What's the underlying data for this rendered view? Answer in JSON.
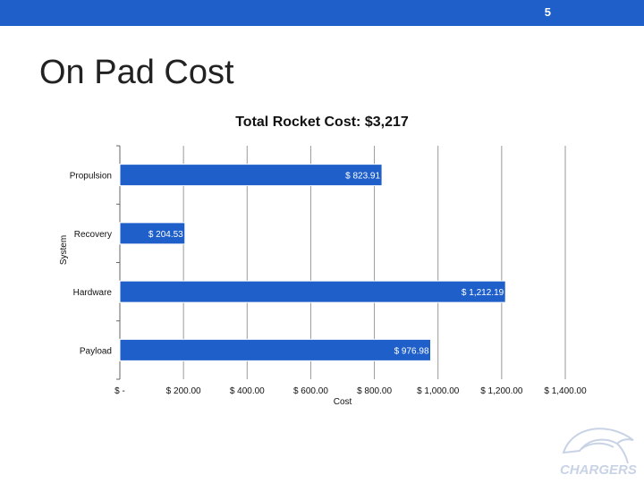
{
  "slide": {
    "number": "5",
    "title": "On Pad Cost",
    "header_color": "#1f5fc9"
  },
  "logo": {
    "text": "CHARGERS",
    "icon": "horse-head-icon"
  },
  "chart_data": {
    "type": "bar",
    "orientation": "horizontal",
    "title": "Total Rocket Cost: $3,217",
    "xlabel": "Cost",
    "ylabel": "System",
    "categories": [
      "Propulsion",
      "Recovery",
      "Hardware",
      "Payload"
    ],
    "values": [
      823.91,
      204.53,
      1212.19,
      976.98
    ],
    "value_labels": [
      "$ 823.91",
      "$ 204.53",
      "$ 1,212.19",
      "$ 976.98"
    ],
    "xlim": [
      0,
      1400
    ],
    "xticks": [
      0,
      200,
      400,
      600,
      800,
      1000,
      1200,
      1400
    ],
    "xtick_labels": [
      "$ -",
      "$ 200.00",
      "$ 400.00",
      "$ 600.00",
      "$ 800.00",
      "$ 1,000.00",
      "$ 1,200.00",
      "$ 1,400.00"
    ],
    "grid": "vertical",
    "bar_color": "#1f5fc9",
    "grid_color": "#999999"
  }
}
